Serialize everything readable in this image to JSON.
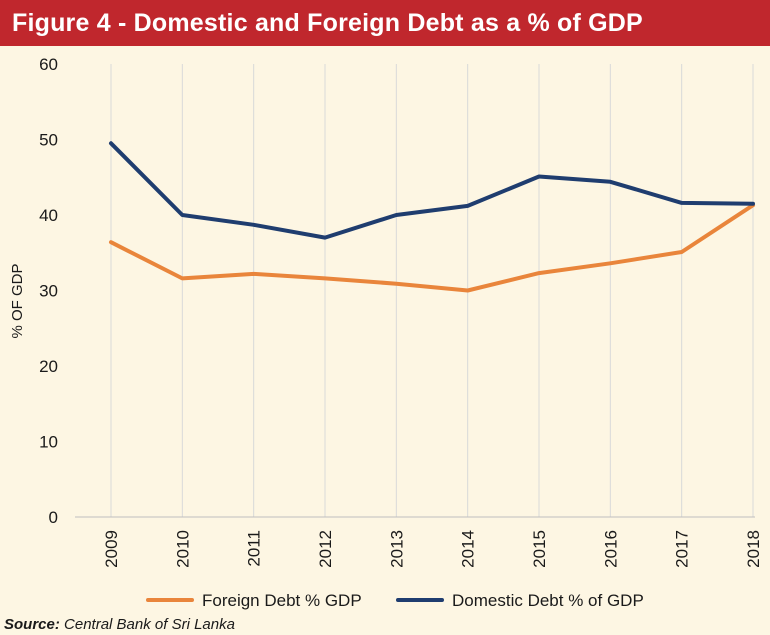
{
  "colors": {
    "title_background": "#c0272d",
    "foreign_series": "#e9853b",
    "domestic_series": "#1f3d6f",
    "gridline": "#d9d9d9",
    "background": "#fdf6e3"
  },
  "source": {
    "label": "Source:",
    "text": "Central Bank of Sri Lanka"
  },
  "chart_data": {
    "type": "line",
    "title": "Figure 4 - Domestic and Foreign Debt as a % of GDP",
    "xlabel": "",
    "ylabel": "% OF GDP",
    "ylim": [
      0,
      60
    ],
    "yticks": [
      0,
      10,
      20,
      30,
      40,
      50,
      60
    ],
    "grid": "vertical",
    "legend_position": "bottom",
    "categories": [
      "2009",
      "2010",
      "2011",
      "2012",
      "2013",
      "2014",
      "2015",
      "2016",
      "2017",
      "2018"
    ],
    "series": [
      {
        "name": "Foreign Debt % GDP",
        "color": "#e9853b",
        "values": [
          36.4,
          31.6,
          32.2,
          31.6,
          30.9,
          30.0,
          32.3,
          33.6,
          35.1,
          41.3
        ]
      },
      {
        "name": "Domestic Debt % of GDP",
        "color": "#1f3d6f",
        "values": [
          49.5,
          40.0,
          38.7,
          37.0,
          40.0,
          41.2,
          45.1,
          44.4,
          41.6,
          41.5
        ]
      }
    ]
  }
}
